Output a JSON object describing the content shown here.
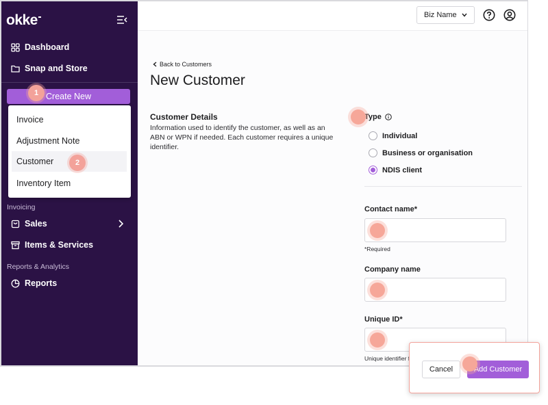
{
  "app": {
    "logo": "okke"
  },
  "sidebar": {
    "top_items": [
      {
        "label": "Dashboard",
        "icon": "grid-icon"
      },
      {
        "label": "Snap and Store",
        "icon": "folder-icon"
      }
    ],
    "create_new_label": "Create New",
    "create_menu": [
      "Invoice",
      "Adjustment Note",
      "Customer",
      "Inventory Item"
    ],
    "sections": [
      {
        "label": "Invoicing",
        "items": [
          {
            "label": "Sales",
            "icon": "bag-icon"
          },
          {
            "label": "Items & Services",
            "icon": "archive-icon"
          }
        ]
      },
      {
        "label": "Reports & Analytics",
        "items": [
          {
            "label": "Reports",
            "icon": "pie-chart-icon"
          }
        ]
      }
    ]
  },
  "topbar": {
    "business_select": "Biz Name"
  },
  "main": {
    "back_link": "Back to Customers",
    "title": "New Customer",
    "section_title": "Customer Details",
    "section_description": "Information used to identify the customer, as well as an ABN or WPN if needed. Each customer requires a unique identifier.",
    "type_label": "Type",
    "type_options": [
      {
        "label": "Individual",
        "checked": false
      },
      {
        "label": "Business or organisation",
        "checked": false
      },
      {
        "label": "NDIS client",
        "checked": true
      }
    ],
    "contact_name_label": "Contact name*",
    "required_note": "*Required",
    "company_name_label": "Company name",
    "unique_id_label": "Unique ID*",
    "unique_id_helper": "Unique identifier for this customer"
  },
  "actions": {
    "cancel": "Cancel",
    "add": "Add Customer"
  },
  "steps": [
    "1",
    "2"
  ],
  "colors": {
    "sidebar_bg": "#2b1245",
    "accent": "#a25ed9",
    "marker": "#f3a29a"
  }
}
